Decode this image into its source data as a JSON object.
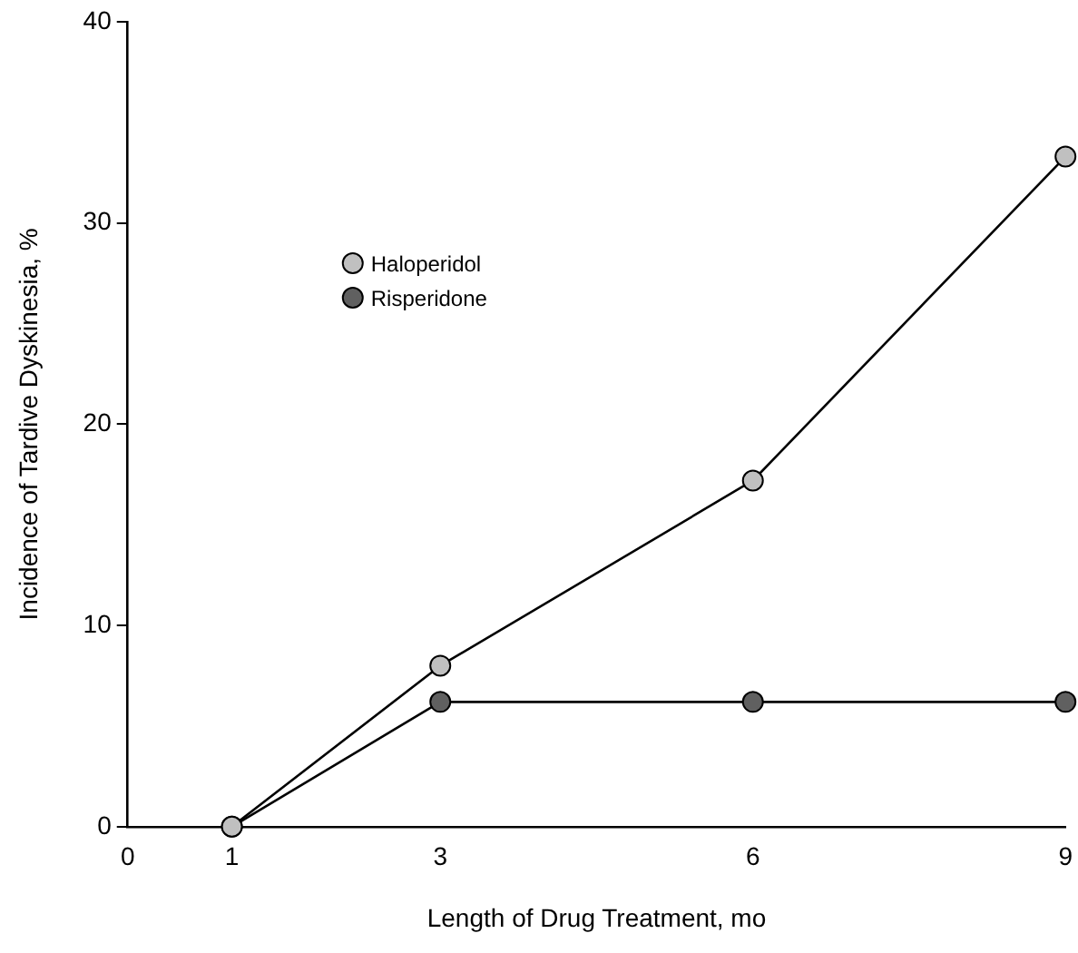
{
  "chart_data": {
    "type": "line",
    "xlabel": "Length of Drug Treatment, mo",
    "ylabel": "Incidence of Tardive Dyskinesia, %",
    "x": [
      1,
      3,
      6,
      9
    ],
    "series": [
      {
        "name": "Haloperidol",
        "color": "#c0c0c0",
        "values": [
          0,
          8.0,
          17.2,
          33.3
        ]
      },
      {
        "name": "Risperidone",
        "color": "#606060",
        "values": [
          0,
          6.2,
          6.2,
          6.2
        ]
      }
    ],
    "xlim": [
      0,
      9
    ],
    "xticks": [
      0,
      1,
      3,
      6,
      9
    ],
    "ylim": [
      0,
      40
    ],
    "yticks": [
      0,
      10,
      20,
      30,
      40
    ],
    "grid": false,
    "legend": "top left",
    "marker": "circle",
    "line_style": "solid"
  }
}
